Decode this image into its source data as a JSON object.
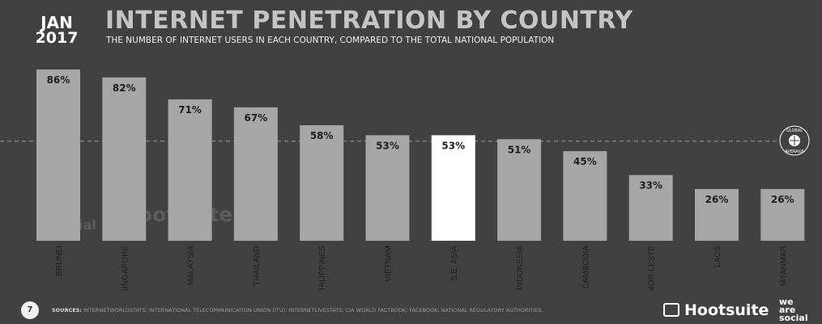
{
  "header": {
    "month": "JAN",
    "year": "2017",
    "title": "INTERNET PENETRATION BY COUNTRY",
    "subtitle": "THE NUMBER OF INTERNET USERS IN EACH COUNTRY, COMPARED TO THE TOTAL NATIONAL POPULATION"
  },
  "badge": {
    "line1": "GLOBAL",
    "line2": "AVERAGE",
    "icon": "globe-icon"
  },
  "watermark": {
    "we_are_social": [
      "we",
      "are",
      "social"
    ],
    "hootsuite": "Hootsuite"
  },
  "footer": {
    "page_number": "7",
    "sources_label": "SOURCES:",
    "sources_text": "INTERNETWORLDSTATS; INTERNATIONAL TELECOMMUNICATION UNION (ITU); INTERNETLIVESTATS; CIA WORLD FACTBOOK; FACEBOOK; NATIONAL REGULATORY AUTHORITIES.",
    "hootsuite_logo": "Hootsuite",
    "we_are_social_logo": [
      "we",
      "are",
      "social"
    ]
  },
  "colors": {
    "background": "#414141",
    "bar": "#a6a6a6",
    "highlight_bar": "#ffffff",
    "title": "#c4c4c4",
    "label": "#1e1e1e"
  },
  "chart_data": {
    "type": "bar",
    "categories": [
      "BRUNEI",
      "SINGAPORE",
      "MALAYSIA",
      "THAILAND",
      "PHILIPPINES",
      "VIETNAM",
      "S.E. ASIA",
      "INDONESIA",
      "CAMBODIA",
      "TIMOR-LESTE",
      "LAOS",
      "MYANMAR"
    ],
    "values": [
      86,
      82,
      71,
      67,
      58,
      53,
      53,
      51,
      45,
      33,
      26,
      26
    ],
    "value_labels": [
      "86%",
      "82%",
      "71%",
      "67%",
      "58%",
      "53%",
      "53%",
      "51%",
      "45%",
      "33%",
      "26%",
      "26%"
    ],
    "highlight_category": "S.E. ASIA",
    "reference_line": {
      "value": 50,
      "style": "dashed"
    },
    "ylim": [
      0,
      86
    ],
    "grid": false,
    "legend": "none"
  }
}
